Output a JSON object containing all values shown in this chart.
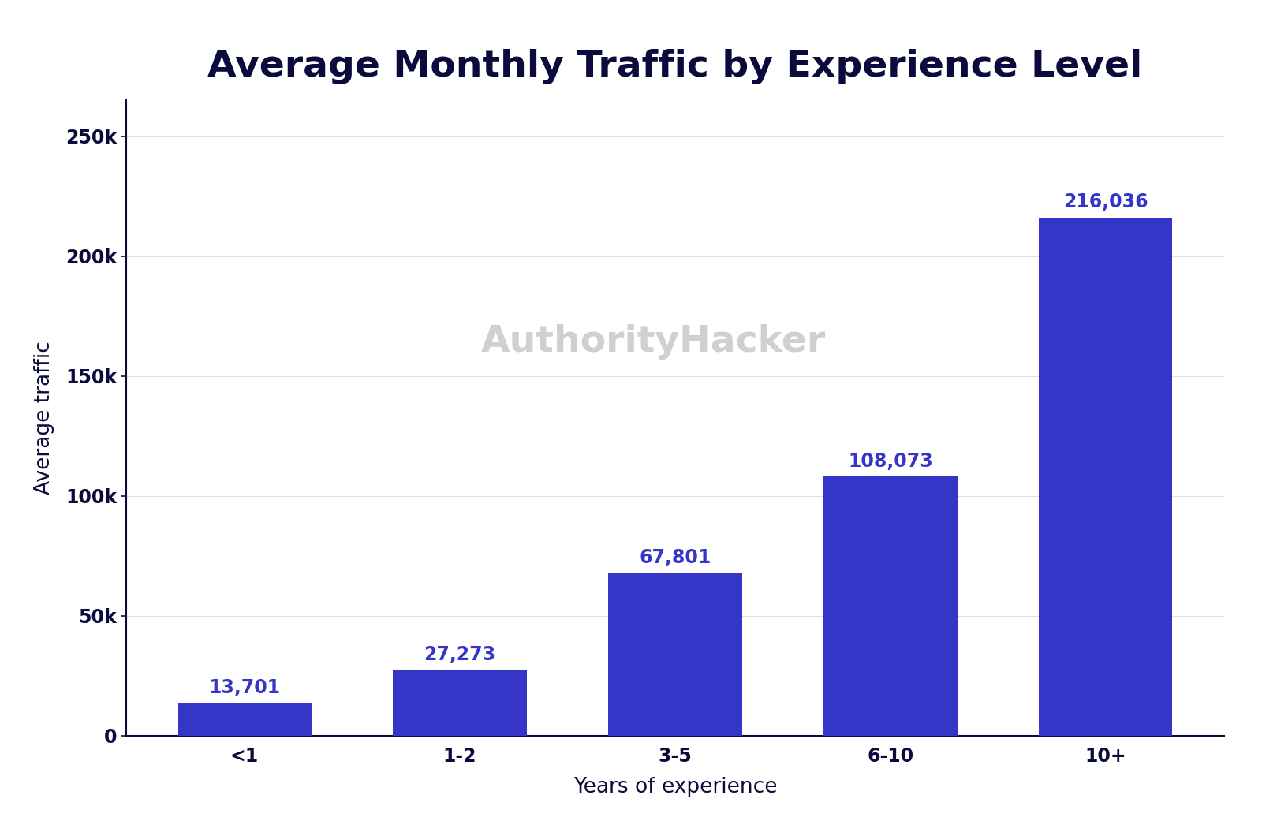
{
  "title": "Average Monthly Traffic by Experience Level",
  "categories": [
    "<1",
    "1-2",
    "3-5",
    "6-10",
    "10+"
  ],
  "values": [
    13701,
    27273,
    67801,
    108073,
    216036
  ],
  "bar_color": "#3535c8",
  "xlabel": "Years of experience",
  "ylabel": "Average traffic",
  "ylim": [
    0,
    265000
  ],
  "yticks": [
    0,
    50000,
    100000,
    150000,
    200000,
    250000
  ],
  "ytick_labels": [
    "0",
    "50k",
    "100k",
    "150k",
    "200k",
    "250k"
  ],
  "value_labels": [
    "13,701",
    "27,273",
    "67,801",
    "108,073",
    "216,036"
  ],
  "title_color": "#0a0a3c",
  "axis_label_color": "#0a0a3c",
  "tick_color": "#0a0a3c",
  "value_label_color": "#3535c8",
  "watermark_text": "AuthorityHacker",
  "watermark_color": "#d0d0d0",
  "background_color": "#ffffff",
  "title_fontsize": 34,
  "axis_label_fontsize": 19,
  "tick_fontsize": 17,
  "value_label_fontsize": 17,
  "watermark_fontsize": 34,
  "bar_width": 0.62
}
